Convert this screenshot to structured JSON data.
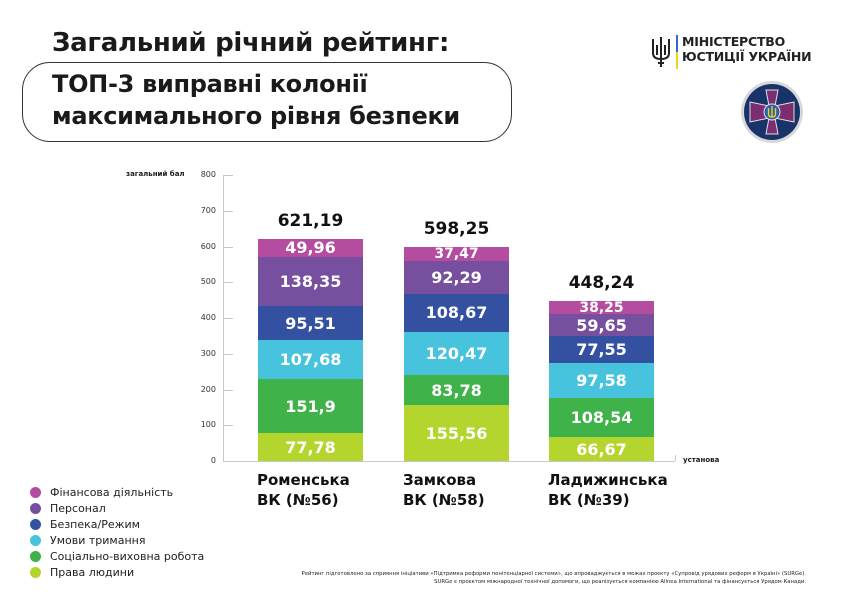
{
  "header": {
    "title": "Загальний річний рейтинг:",
    "subtitle_line1": "ТОП-3 виправні колонії",
    "subtitle_line2": "максимального рівня безпеки"
  },
  "logos": {
    "ministry_line1": "МІНІСТЕРСТВО",
    "ministry_line2": "ЮСТИЦІЇ УКРАЇНИ",
    "emblem": "penitentiary-service-emblem"
  },
  "colors": {
    "finance": "#b44c9f",
    "personnel": "#764f9f",
    "security": "#3450a1",
    "conditions": "#48c3de",
    "social": "#3fb249",
    "human_rights": "#b4d52d"
  },
  "chart_data": {
    "type": "bar",
    "stacked": true,
    "title": "Загальний річний рейтинг: ТОП-3 виправні колонії максимального рівня безпеки",
    "xlabel": "установа",
    "ylabel": "загальний бал",
    "ylim": [
      0,
      800
    ],
    "yticks": [
      0,
      100,
      200,
      300,
      400,
      500,
      600,
      700,
      800
    ],
    "grid": false,
    "legend_position": "bottom-left",
    "categories": [
      "Роменська ВК (№56)",
      "Замкова ВК (№58)",
      "Ладижинська ВК (№39)"
    ],
    "totals": [
      "621,19",
      "598,25",
      "448,24"
    ],
    "series": [
      {
        "name": "Права людини",
        "color": "#b4d52d",
        "values": [
          77.78,
          155.56,
          66.67
        ],
        "labels": [
          "77,78",
          "155,56",
          "66,67"
        ]
      },
      {
        "name": "Соціально-виховна робота",
        "color": "#3fb249",
        "values": [
          151.9,
          83.78,
          108.54
        ],
        "labels": [
          "151,9",
          "83,78",
          "108,54"
        ]
      },
      {
        "name": "Умови тримання",
        "color": "#48c3de",
        "values": [
          107.68,
          120.47,
          97.58
        ],
        "labels": [
          "107,68",
          "120,47",
          "97,58"
        ]
      },
      {
        "name": "Безпека/Режим",
        "color": "#3450a1",
        "values": [
          95.51,
          108.67,
          77.55
        ],
        "labels": [
          "95,51",
          "108,67",
          "77,55"
        ]
      },
      {
        "name": "Персонал",
        "color": "#764f9f",
        "values": [
          138.35,
          92.29,
          59.65
        ],
        "labels": [
          "138,35",
          "92,29",
          "59,65"
        ]
      },
      {
        "name": "Фінансова діяльність",
        "color": "#b44c9f",
        "values": [
          49.96,
          37.47,
          38.25
        ],
        "labels": [
          "49,96",
          "37,47",
          "38,25"
        ]
      }
    ]
  },
  "axis": {
    "y_title": "загальний бал",
    "x_title": "установа",
    "ticks": [
      "0",
      "100",
      "200",
      "300",
      "400",
      "500",
      "600",
      "700",
      "800"
    ]
  },
  "bars": [
    {
      "line1": "Роменська",
      "line2": "ВК (№56)",
      "total": "621,19"
    },
    {
      "line1": "Замкова",
      "line2": "ВК (№58)",
      "total": "598,25"
    },
    {
      "line1": "Ладижинська",
      "line2": "ВК (№39)",
      "total": "448,24"
    }
  ],
  "legend": [
    {
      "label": "Фінансова діяльність",
      "color": "#b44c9f"
    },
    {
      "label": "Персонал",
      "color": "#764f9f"
    },
    {
      "label": "Безпека/Режим",
      "color": "#3450a1"
    },
    {
      "label": "Умови тримання",
      "color": "#48c3de"
    },
    {
      "label": "Соціально-виховна робота",
      "color": "#3fb249"
    },
    {
      "label": "Права людини",
      "color": "#b4d52d"
    }
  ],
  "footnote": {
    "line1": "Рейтинг підготовлено за сприяння ініціативи «Підтримка реформи пенітенціарної системи», що впроваджується в межах проєкту «Супровід урядових реформ в Україні» (SURGe).",
    "line2": "SURGe є проєктом міжнародної технічної допомоги, що реалізується компанією Alinea International та фінансується Урядом Канади."
  }
}
